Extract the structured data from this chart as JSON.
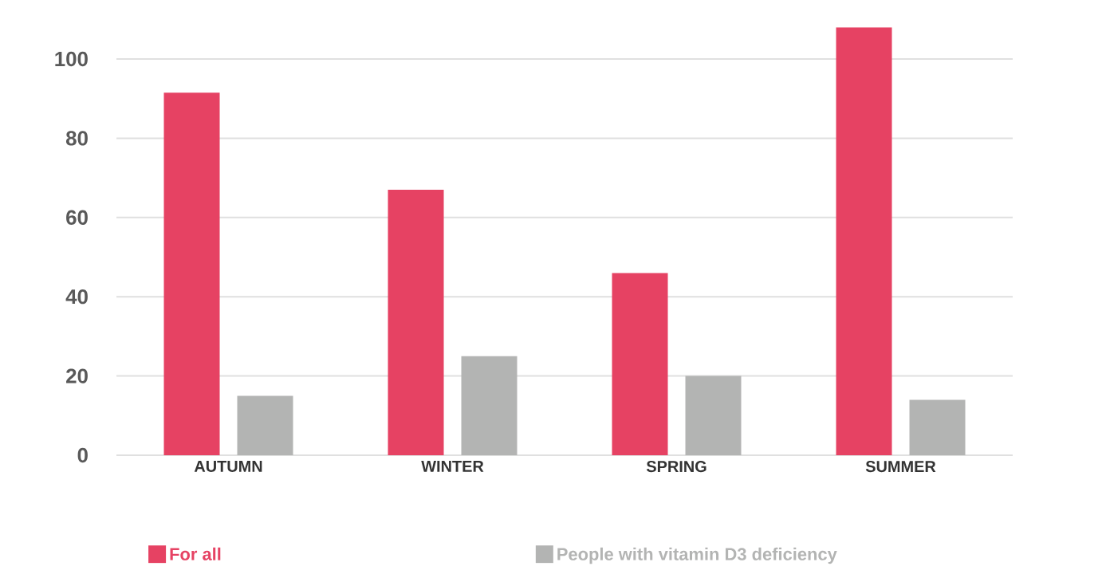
{
  "chart_data": {
    "type": "bar",
    "categories": [
      "AUTUMN",
      "WINTER",
      "SPRING",
      "SUMMER"
    ],
    "series": [
      {
        "name": "For all",
        "color": "#e64263",
        "values": [
          91.5,
          67,
          46,
          108
        ]
      },
      {
        "name": "People with vitamin D3 deficiency",
        "color": "#b3b4b3",
        "values": [
          15,
          25,
          20,
          14
        ]
      }
    ],
    "ylim": [
      0,
      108
    ],
    "yticks": [
      0,
      20,
      40,
      60,
      80,
      100
    ],
    "grid": "y",
    "legend": "bottom"
  }
}
